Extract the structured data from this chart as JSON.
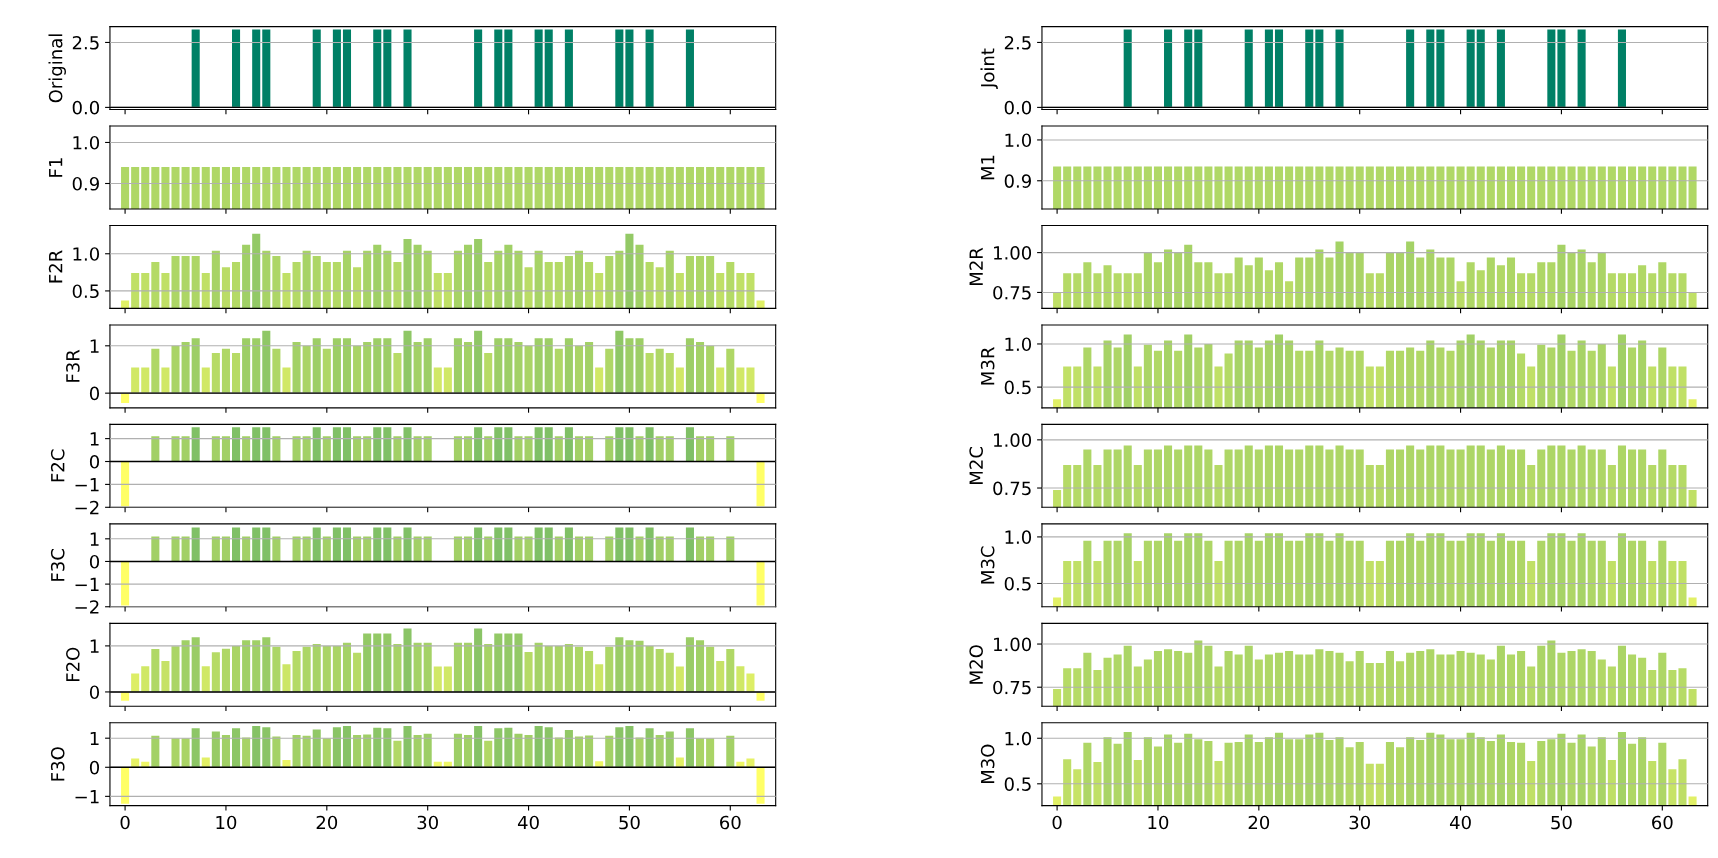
{
  "chart_data": [
    {
      "type": "bar",
      "ylabel": "Original",
      "tick_labels": "y",
      "grid": "y",
      "xlim": [
        -1.5,
        64.5
      ],
      "xticks": [
        0,
        10,
        20,
        30,
        40,
        50,
        60
      ],
      "ylim": [
        -0.08,
        3.11
      ],
      "yticks": [
        {
          "value": 0,
          "label": "0.0"
        },
        2.5
      ],
      "ref_lines": [
        {
          "axis": "y",
          "value": 0,
          "color": "#000000"
        }
      ],
      "x": [
        0,
        1,
        2,
        3,
        4,
        5,
        6,
        7,
        8,
        9,
        10,
        11,
        12,
        13,
        14,
        15,
        16,
        17,
        18,
        19,
        20,
        21,
        22,
        23,
        24,
        25,
        26,
        27,
        28,
        29,
        30,
        31,
        32,
        33,
        34,
        35,
        36,
        37,
        38,
        39,
        40,
        41,
        42,
        43,
        44,
        45,
        46,
        47,
        48,
        49,
        50,
        51,
        52,
        53,
        54,
        55,
        56,
        57,
        58,
        59,
        60,
        61,
        62,
        63
      ],
      "values": [
        0,
        0,
        0,
        0,
        0,
        0,
        0,
        3,
        0,
        0,
        0,
        3,
        0,
        3,
        3,
        0,
        0,
        0,
        0,
        3,
        0,
        3,
        3,
        0,
        0,
        3,
        3,
        0,
        3,
        0,
        0,
        0,
        0,
        0,
        0,
        3,
        0,
        3,
        3,
        0,
        0,
        3,
        3,
        0,
        3,
        0,
        0,
        0,
        0,
        3,
        3,
        0,
        3,
        0,
        0,
        0,
        3,
        0,
        0,
        0,
        0,
        0,
        0,
        0
      ]
    },
    {
      "type": "bar",
      "ylabel": "Joint",
      "tick_labels": "y",
      "grid": "y",
      "xlim": [
        -1.5,
        64.5
      ],
      "xticks": [
        0,
        10,
        20,
        30,
        40,
        50,
        60
      ],
      "ylim": [
        -0.08,
        3.11
      ],
      "yticks": [
        {
          "value": 0,
          "label": "0.0"
        },
        2.5
      ],
      "ref_lines": [
        {
          "axis": "y",
          "value": 0,
          "color": "#000000"
        }
      ],
      "x": [
        0,
        1,
        2,
        3,
        4,
        5,
        6,
        7,
        8,
        9,
        10,
        11,
        12,
        13,
        14,
        15,
        16,
        17,
        18,
        19,
        20,
        21,
        22,
        23,
        24,
        25,
        26,
        27,
        28,
        29,
        30,
        31,
        32,
        33,
        34,
        35,
        36,
        37,
        38,
        39,
        40,
        41,
        42,
        43,
        44,
        45,
        46,
        47,
        48,
        49,
        50,
        51,
        52,
        53,
        54,
        55,
        56,
        57,
        58,
        59,
        60,
        61,
        62,
        63
      ],
      "values": [
        0,
        0,
        0,
        0,
        0,
        0,
        0,
        3,
        0,
        0,
        0,
        3,
        0,
        3,
        3,
        0,
        0,
        0,
        0,
        3,
        0,
        3,
        3,
        0,
        0,
        3,
        3,
        0,
        3,
        0,
        0,
        0,
        0,
        0,
        0,
        3,
        0,
        3,
        3,
        0,
        0,
        3,
        3,
        0,
        3,
        0,
        0,
        0,
        0,
        3,
        3,
        0,
        3,
        0,
        0,
        0,
        3,
        0,
        0,
        0,
        0,
        0,
        0,
        0
      ]
    },
    {
      "type": "bar",
      "ylabel": "F1",
      "tick_labels": "y",
      "grid": "y",
      "xlim": [
        -1.5,
        64.5
      ],
      "xticks": [
        0,
        10,
        20,
        30,
        40,
        50,
        60
      ],
      "ylim": [
        0.838,
        1.04
      ],
      "yticks": [
        0.9,
        {
          "value": 1,
          "label": "1.0"
        }
      ],
      "x": [
        0,
        1,
        2,
        3,
        4,
        5,
        6,
        7,
        8,
        9,
        10,
        11,
        12,
        13,
        14,
        15,
        16,
        17,
        18,
        19,
        20,
        21,
        22,
        23,
        24,
        25,
        26,
        27,
        28,
        29,
        30,
        31,
        32,
        33,
        34,
        35,
        36,
        37,
        38,
        39,
        40,
        41,
        42,
        43,
        44,
        45,
        46,
        47,
        48,
        49,
        50,
        51,
        52,
        53,
        54,
        55,
        56,
        57,
        58,
        59,
        60,
        61,
        62,
        63
      ],
      "values": [
        0.94,
        0.94,
        0.94,
        0.94,
        0.94,
        0.94,
        0.94,
        0.94,
        0.94,
        0.94,
        0.94,
        0.94,
        0.94,
        0.94,
        0.94,
        0.94,
        0.94,
        0.94,
        0.94,
        0.94,
        0.94,
        0.94,
        0.94,
        0.94,
        0.94,
        0.94,
        0.94,
        0.94,
        0.94,
        0.94,
        0.94,
        0.94,
        0.94,
        0.94,
        0.94,
        0.94,
        0.94,
        0.94,
        0.94,
        0.94,
        0.94,
        0.94,
        0.94,
        0.94,
        0.94,
        0.94,
        0.94,
        0.94,
        0.94,
        0.94,
        0.94,
        0.94,
        0.94,
        0.94,
        0.94,
        0.94,
        0.94,
        0.94,
        0.94,
        0.94,
        0.94,
        0.94,
        0.94,
        0.94
      ]
    },
    {
      "type": "bar",
      "ylabel": "M1",
      "tick_labels": "y",
      "grid": "y",
      "xlim": [
        -1.5,
        64.5
      ],
      "xticks": [
        0,
        10,
        20,
        30,
        40,
        50,
        60
      ],
      "ylim": [
        0.831,
        1.034
      ],
      "yticks": [
        0.9,
        {
          "value": 1,
          "label": "1.0"
        }
      ],
      "x": [
        0,
        1,
        2,
        3,
        4,
        5,
        6,
        7,
        8,
        9,
        10,
        11,
        12,
        13,
        14,
        15,
        16,
        17,
        18,
        19,
        20,
        21,
        22,
        23,
        24,
        25,
        26,
        27,
        28,
        29,
        30,
        31,
        32,
        33,
        34,
        35,
        36,
        37,
        38,
        39,
        40,
        41,
        42,
        43,
        44,
        45,
        46,
        47,
        48,
        49,
        50,
        51,
        52,
        53,
        54,
        55,
        56,
        57,
        58,
        59,
        60,
        61,
        62,
        63
      ],
      "values": [
        0.935,
        0.935,
        0.935,
        0.935,
        0.935,
        0.935,
        0.935,
        0.935,
        0.935,
        0.935,
        0.935,
        0.935,
        0.935,
        0.935,
        0.935,
        0.935,
        0.935,
        0.935,
        0.935,
        0.935,
        0.935,
        0.935,
        0.935,
        0.935,
        0.935,
        0.935,
        0.935,
        0.935,
        0.935,
        0.935,
        0.935,
        0.935,
        0.935,
        0.935,
        0.935,
        0.935,
        0.935,
        0.935,
        0.935,
        0.935,
        0.935,
        0.935,
        0.935,
        0.935,
        0.935,
        0.935,
        0.935,
        0.935,
        0.935,
        0.935,
        0.935,
        0.935,
        0.935,
        0.935,
        0.935,
        0.935,
        0.935,
        0.935,
        0.935,
        0.935,
        0.935,
        0.935,
        0.935,
        0.935
      ]
    },
    {
      "type": "bar",
      "ylabel": "F2R",
      "tick_labels": "y",
      "grid": "y",
      "xlim": [
        -1.5,
        64.5
      ],
      "xticks": [
        0,
        10,
        20,
        30,
        40,
        50,
        60
      ],
      "ylim": [
        0.265,
        1.38
      ],
      "yticks": [
        0.5,
        {
          "value": 1,
          "label": "1.0"
        }
      ],
      "x": [
        0,
        1,
        2,
        3,
        4,
        5,
        6,
        7,
        8,
        9,
        10,
        11,
        12,
        13,
        14,
        15,
        16,
        17,
        18,
        19,
        20,
        21,
        22,
        23,
        24,
        25,
        26,
        27,
        28,
        29,
        30,
        31,
        32,
        33,
        34,
        35,
        36,
        37,
        38,
        39,
        40,
        41,
        42,
        43,
        44,
        45,
        46,
        47,
        48,
        49,
        50,
        51,
        52,
        53,
        54,
        55,
        56,
        57,
        58,
        59,
        60,
        61,
        62,
        63
      ],
      "values": [
        0.37,
        0.74,
        0.74,
        0.89,
        0.74,
        0.97,
        0.97,
        0.97,
        0.74,
        1.04,
        0.82,
        0.89,
        1.12,
        1.27,
        1.04,
        0.97,
        0.74,
        0.89,
        1.04,
        0.97,
        0.89,
        0.89,
        1.04,
        0.82,
        1.04,
        1.12,
        1.04,
        0.89,
        1.2,
        1.12,
        1.04,
        0.74,
        0.74,
        1.04,
        1.12,
        1.2,
        0.89,
        1.04,
        1.12,
        1.04,
        0.82,
        1.04,
        0.89,
        0.89,
        0.97,
        1.04,
        0.89,
        0.74,
        0.97,
        1.04,
        1.27,
        1.12,
        0.89,
        0.82,
        1.04,
        0.74,
        0.97,
        0.97,
        0.97,
        0.74,
        0.89,
        0.74,
        0.74,
        0.37
      ]
    },
    {
      "type": "bar",
      "ylabel": "M2R",
      "tick_labels": "y",
      "grid": "y",
      "xlim": [
        -1.5,
        64.5
      ],
      "xticks": [
        0,
        10,
        20,
        30,
        40,
        50,
        60
      ],
      "ylim": [
        0.65,
        1.17
      ],
      "yticks": [
        0.75,
        {
          "value": 1,
          "label": "1.00"
        }
      ],
      "x": [
        0,
        1,
        2,
        3,
        4,
        5,
        6,
        7,
        8,
        9,
        10,
        11,
        12,
        13,
        14,
        15,
        16,
        17,
        18,
        19,
        20,
        21,
        22,
        23,
        24,
        25,
        26,
        27,
        28,
        29,
        30,
        31,
        32,
        33,
        34,
        35,
        36,
        37,
        38,
        39,
        40,
        41,
        42,
        43,
        44,
        45,
        46,
        47,
        48,
        49,
        50,
        51,
        52,
        53,
        54,
        55,
        56,
        57,
        58,
        59,
        60,
        61,
        62,
        63
      ],
      "values": [
        0.75,
        0.87,
        0.87,
        0.94,
        0.87,
        0.92,
        0.87,
        0.87,
        0.87,
        1.0,
        0.94,
        1.02,
        1.0,
        1.05,
        0.94,
        0.94,
        0.87,
        0.87,
        0.97,
        0.92,
        0.97,
        0.89,
        0.94,
        0.82,
        0.97,
        0.97,
        1.02,
        0.97,
        1.07,
        1.0,
        1.0,
        0.87,
        0.87,
        1.0,
        1.0,
        1.07,
        0.97,
        1.02,
        0.97,
        0.97,
        0.82,
        0.94,
        0.89,
        0.97,
        0.92,
        0.97,
        0.87,
        0.87,
        0.94,
        0.94,
        1.05,
        1.0,
        1.02,
        0.94,
        1.0,
        0.87,
        0.87,
        0.87,
        0.92,
        0.87,
        0.94,
        0.87,
        0.87,
        0.75
      ]
    },
    {
      "type": "bar",
      "ylabel": "F3R",
      "tick_labels": "y",
      "grid": "y",
      "xlim": [
        -1.5,
        64.5
      ],
      "xticks": [
        0,
        10,
        20,
        30,
        40,
        50,
        60
      ],
      "ylim": [
        -0.31,
        1.44
      ],
      "yticks": [
        0,
        1
      ],
      "ref_lines": [
        {
          "axis": "y",
          "value": 0,
          "color": "#000000"
        }
      ],
      "x": [
        0,
        1,
        2,
        3,
        4,
        5,
        6,
        7,
        8,
        9,
        10,
        11,
        12,
        13,
        14,
        15,
        16,
        17,
        18,
        19,
        20,
        21,
        22,
        23,
        24,
        25,
        26,
        27,
        28,
        29,
        30,
        31,
        32,
        33,
        34,
        35,
        36,
        37,
        38,
        39,
        40,
        41,
        42,
        43,
        44,
        45,
        46,
        47,
        48,
        49,
        50,
        51,
        52,
        53,
        54,
        55,
        56,
        57,
        58,
        59,
        60,
        61,
        62,
        63
      ],
      "values": [
        -0.21,
        0.54,
        0.54,
        0.94,
        0.54,
        1.0,
        1.08,
        1.16,
        0.54,
        0.85,
        0.94,
        0.85,
        1.16,
        1.16,
        1.32,
        0.94,
        0.54,
        1.08,
        1.0,
        1.16,
        0.94,
        1.16,
        1.16,
        1.0,
        1.08,
        1.16,
        1.16,
        0.85,
        1.32,
        1.08,
        1.16,
        0.54,
        0.54,
        1.16,
        1.08,
        1.32,
        0.85,
        1.16,
        1.16,
        1.08,
        1.0,
        1.16,
        1.16,
        0.94,
        1.16,
        1.0,
        1.08,
        0.54,
        0.94,
        1.32,
        1.16,
        1.16,
        0.85,
        0.94,
        0.85,
        0.54,
        1.16,
        1.08,
        1.0,
        0.54,
        0.94,
        0.54,
        0.54,
        -0.21
      ]
    },
    {
      "type": "bar",
      "ylabel": "M3R",
      "tick_labels": "y",
      "grid": "y",
      "xlim": [
        -1.5,
        64.5
      ],
      "xticks": [
        0,
        10,
        20,
        30,
        40,
        50,
        60
      ],
      "ylim": [
        0.26,
        1.22
      ],
      "yticks": [
        0.5,
        {
          "value": 1,
          "label": "1.0"
        }
      ],
      "x": [
        0,
        1,
        2,
        3,
        4,
        5,
        6,
        7,
        8,
        9,
        10,
        11,
        12,
        13,
        14,
        15,
        16,
        17,
        18,
        19,
        20,
        21,
        22,
        23,
        24,
        25,
        26,
        27,
        28,
        29,
        30,
        31,
        32,
        33,
        34,
        35,
        36,
        37,
        38,
        39,
        40,
        41,
        42,
        43,
        44,
        45,
        46,
        47,
        48,
        49,
        50,
        51,
        52,
        53,
        54,
        55,
        56,
        57,
        58,
        59,
        60,
        61,
        62,
        63
      ],
      "values": [
        0.36,
        0.74,
        0.74,
        0.96,
        0.74,
        1.04,
        0.96,
        1.11,
        0.74,
        0.99,
        0.92,
        1.04,
        0.92,
        1.11,
        0.96,
        1.0,
        0.74,
        0.89,
        1.04,
        1.04,
        0.96,
        1.04,
        1.11,
        1.04,
        0.92,
        0.92,
        1.04,
        0.92,
        0.96,
        0.92,
        0.92,
        0.74,
        0.74,
        0.92,
        0.92,
        0.96,
        0.92,
        1.04,
        0.96,
        0.92,
        1.04,
        1.11,
        1.04,
        0.96,
        1.04,
        1.04,
        0.89,
        0.74,
        0.99,
        0.96,
        1.11,
        0.92,
        1.04,
        0.92,
        1.0,
        0.74,
        1.11,
        0.96,
        1.04,
        0.74,
        0.96,
        0.74,
        0.74,
        0.36
      ]
    },
    {
      "type": "bar",
      "ylabel": "F2C",
      "tick_labels": "y",
      "grid": "y",
      "xlim": [
        -1.5,
        64.5
      ],
      "xticks": [
        0,
        10,
        20,
        30,
        40,
        50,
        60
      ],
      "ylim": [
        -2.0,
        1.62
      ],
      "yticks": [
        {
          "value": -2,
          "label": "−2"
        },
        {
          "value": -1,
          "label": "−1"
        },
        0,
        1
      ],
      "ref_lines": [
        {
          "axis": "y",
          "value": 0,
          "color": "#000000"
        }
      ],
      "x": [
        0,
        1,
        2,
        3,
        4,
        5,
        6,
        7,
        8,
        9,
        10,
        11,
        12,
        13,
        14,
        15,
        16,
        17,
        18,
        19,
        20,
        21,
        22,
        23,
        24,
        25,
        26,
        27,
        28,
        29,
        30,
        31,
        32,
        33,
        34,
        35,
        36,
        37,
        38,
        39,
        40,
        41,
        42,
        43,
        44,
        45,
        46,
        47,
        48,
        49,
        50,
        51,
        52,
        53,
        54,
        55,
        56,
        57,
        58,
        59,
        60,
        61,
        62,
        63
      ],
      "values": [
        -1.95,
        0,
        0,
        1.1,
        0,
        1.1,
        1.1,
        1.5,
        0,
        1.1,
        1.1,
        1.5,
        1.1,
        1.5,
        1.5,
        1.1,
        0,
        1.1,
        1.1,
        1.5,
        1.1,
        1.5,
        1.5,
        1.1,
        1.1,
        1.5,
        1.5,
        1.1,
        1.5,
        1.1,
        1.1,
        0,
        0,
        1.1,
        1.1,
        1.5,
        1.1,
        1.5,
        1.5,
        1.1,
        1.1,
        1.5,
        1.5,
        1.1,
        1.5,
        1.1,
        1.1,
        0,
        1.1,
        1.5,
        1.5,
        1.1,
        1.5,
        1.1,
        1.1,
        0,
        1.5,
        1.1,
        1.1,
        0,
        1.1,
        0,
        0,
        -1.95
      ]
    },
    {
      "type": "bar",
      "ylabel": "M2C",
      "tick_labels": "y",
      "grid": "y",
      "xlim": [
        -1.5,
        64.5
      ],
      "xticks": [
        0,
        10,
        20,
        30,
        40,
        50,
        60
      ],
      "ylim": [
        0.65,
        1.08
      ],
      "yticks": [
        0.75,
        {
          "value": 1,
          "label": "1.00"
        }
      ],
      "x": [
        0,
        1,
        2,
        3,
        4,
        5,
        6,
        7,
        8,
        9,
        10,
        11,
        12,
        13,
        14,
        15,
        16,
        17,
        18,
        19,
        20,
        21,
        22,
        23,
        24,
        25,
        26,
        27,
        28,
        29,
        30,
        31,
        32,
        33,
        34,
        35,
        36,
        37,
        38,
        39,
        40,
        41,
        42,
        43,
        44,
        45,
        46,
        47,
        48,
        49,
        50,
        51,
        52,
        53,
        54,
        55,
        56,
        57,
        58,
        59,
        60,
        61,
        62,
        63
      ],
      "values": [
        0.74,
        0.87,
        0.87,
        0.95,
        0.87,
        0.95,
        0.95,
        0.97,
        0.87,
        0.95,
        0.95,
        0.97,
        0.95,
        0.97,
        0.97,
        0.95,
        0.87,
        0.95,
        0.95,
        0.97,
        0.95,
        0.97,
        0.97,
        0.95,
        0.95,
        0.97,
        0.97,
        0.95,
        0.97,
        0.95,
        0.95,
        0.87,
        0.87,
        0.95,
        0.95,
        0.97,
        0.95,
        0.97,
        0.97,
        0.95,
        0.95,
        0.97,
        0.97,
        0.95,
        0.97,
        0.95,
        0.95,
        0.87,
        0.95,
        0.97,
        0.97,
        0.95,
        0.97,
        0.95,
        0.95,
        0.87,
        0.97,
        0.95,
        0.95,
        0.87,
        0.95,
        0.87,
        0.87,
        0.74
      ]
    },
    {
      "type": "bar",
      "ylabel": "F3C",
      "tick_labels": "y",
      "grid": "y",
      "xlim": [
        -1.5,
        64.5
      ],
      "xticks": [
        0,
        10,
        20,
        30,
        40,
        50,
        60
      ],
      "ylim": [
        -2.0,
        1.66
      ],
      "yticks": [
        {
          "value": -2,
          "label": "−2"
        },
        {
          "value": -1,
          "label": "−1"
        },
        0,
        1
      ],
      "ref_lines": [
        {
          "axis": "y",
          "value": 0,
          "color": "#000000"
        }
      ],
      "x": [
        0,
        1,
        2,
        3,
        4,
        5,
        6,
        7,
        8,
        9,
        10,
        11,
        12,
        13,
        14,
        15,
        16,
        17,
        18,
        19,
        20,
        21,
        22,
        23,
        24,
        25,
        26,
        27,
        28,
        29,
        30,
        31,
        32,
        33,
        34,
        35,
        36,
        37,
        38,
        39,
        40,
        41,
        42,
        43,
        44,
        45,
        46,
        47,
        48,
        49,
        50,
        51,
        52,
        53,
        54,
        55,
        56,
        57,
        58,
        59,
        60,
        61,
        62,
        63
      ],
      "values": [
        -1.95,
        0,
        0,
        1.1,
        0,
        1.1,
        1.1,
        1.5,
        0,
        1.1,
        1.1,
        1.5,
        1.1,
        1.5,
        1.5,
        1.1,
        0,
        1.1,
        1.1,
        1.5,
        1.1,
        1.5,
        1.5,
        1.1,
        1.1,
        1.5,
        1.5,
        1.1,
        1.5,
        1.1,
        1.1,
        0,
        0,
        1.1,
        1.1,
        1.5,
        1.1,
        1.5,
        1.5,
        1.1,
        1.1,
        1.5,
        1.5,
        1.1,
        1.5,
        1.1,
        1.1,
        0,
        1.1,
        1.5,
        1.5,
        1.1,
        1.5,
        1.1,
        1.1,
        0,
        1.5,
        1.1,
        1.1,
        0,
        1.1,
        0,
        0,
        -1.95
      ]
    },
    {
      "type": "bar",
      "ylabel": "M3C",
      "tick_labels": "y",
      "grid": "y",
      "xlim": [
        -1.5,
        64.5
      ],
      "xticks": [
        0,
        10,
        20,
        30,
        40,
        50,
        60
      ],
      "ylim": [
        0.25,
        1.14
      ],
      "yticks": [
        0.5,
        {
          "value": 1,
          "label": "1.0"
        }
      ],
      "x": [
        0,
        1,
        2,
        3,
        4,
        5,
        6,
        7,
        8,
        9,
        10,
        11,
        12,
        13,
        14,
        15,
        16,
        17,
        18,
        19,
        20,
        21,
        22,
        23,
        24,
        25,
        26,
        27,
        28,
        29,
        30,
        31,
        32,
        33,
        34,
        35,
        36,
        37,
        38,
        39,
        40,
        41,
        42,
        43,
        44,
        45,
        46,
        47,
        48,
        49,
        50,
        51,
        52,
        53,
        54,
        55,
        56,
        57,
        58,
        59,
        60,
        61,
        62,
        63
      ],
      "values": [
        0.35,
        0.74,
        0.74,
        0.96,
        0.74,
        0.96,
        0.96,
        1.04,
        0.74,
        0.96,
        0.96,
        1.04,
        0.96,
        1.04,
        1.04,
        0.96,
        0.74,
        0.96,
        0.96,
        1.04,
        0.96,
        1.04,
        1.04,
        0.96,
        0.96,
        1.04,
        1.04,
        0.96,
        1.04,
        0.96,
        0.96,
        0.74,
        0.74,
        0.96,
        0.96,
        1.04,
        0.96,
        1.04,
        1.04,
        0.96,
        0.96,
        1.04,
        1.04,
        0.96,
        1.04,
        0.96,
        0.96,
        0.74,
        0.96,
        1.04,
        1.04,
        0.96,
        1.04,
        0.96,
        0.96,
        0.74,
        1.04,
        0.96,
        0.96,
        0.74,
        0.96,
        0.74,
        0.74,
        0.35
      ]
    },
    {
      "type": "bar",
      "ylabel": "F2O",
      "tick_labels": "y",
      "grid": "y",
      "xlim": [
        -1.5,
        64.5
      ],
      "xticks": [
        0,
        10,
        20,
        30,
        40,
        50,
        60
      ],
      "ylim": [
        -0.31,
        1.49
      ],
      "yticks": [
        0,
        1
      ],
      "ref_lines": [
        {
          "axis": "y",
          "value": 0,
          "color": "#000000"
        }
      ],
      "x": [
        0,
        1,
        2,
        3,
        4,
        5,
        6,
        7,
        8,
        9,
        10,
        11,
        12,
        13,
        14,
        15,
        16,
        17,
        18,
        19,
        20,
        21,
        22,
        23,
        24,
        25,
        26,
        27,
        28,
        29,
        30,
        31,
        32,
        33,
        34,
        35,
        36,
        37,
        38,
        39,
        40,
        41,
        42,
        43,
        44,
        45,
        46,
        47,
        48,
        49,
        50,
        51,
        52,
        53,
        54,
        55,
        56,
        57,
        58,
        59,
        60,
        61,
        62,
        63
      ],
      "values": [
        -0.19,
        0.4,
        0.56,
        0.93,
        0.67,
        0.99,
        1.12,
        1.19,
        0.56,
        0.86,
        0.94,
        1.0,
        1.12,
        1.12,
        1.19,
        0.98,
        0.6,
        0.89,
        0.98,
        1.04,
        1.0,
        1.0,
        1.07,
        0.85,
        1.27,
        1.27,
        1.27,
        1.04,
        1.38,
        1.07,
        1.07,
        0.55,
        0.55,
        1.07,
        1.07,
        1.38,
        1.04,
        1.27,
        1.27,
        1.27,
        0.87,
        1.07,
        1.0,
        1.0,
        1.04,
        0.98,
        0.89,
        0.6,
        0.98,
        1.19,
        1.12,
        1.11,
        1.0,
        0.93,
        0.85,
        0.55,
        1.19,
        1.12,
        0.98,
        0.67,
        0.93,
        0.56,
        0.4,
        -0.19
      ]
    },
    {
      "type": "bar",
      "ylabel": "M2O",
      "tick_labels": "y",
      "grid": "y",
      "xlim": [
        -1.5,
        64.5
      ],
      "xticks": [
        0,
        10,
        20,
        30,
        40,
        50,
        60
      ],
      "ylim": [
        0.64,
        1.12
      ],
      "yticks": [
        0.75,
        {
          "value": 1,
          "label": "1.00"
        }
      ],
      "x": [
        0,
        1,
        2,
        3,
        4,
        5,
        6,
        7,
        8,
        9,
        10,
        11,
        12,
        13,
        14,
        15,
        16,
        17,
        18,
        19,
        20,
        21,
        22,
        23,
        24,
        25,
        26,
        27,
        28,
        29,
        30,
        31,
        32,
        33,
        34,
        35,
        36,
        37,
        38,
        39,
        40,
        41,
        42,
        43,
        44,
        45,
        46,
        47,
        48,
        49,
        50,
        51,
        52,
        53,
        54,
        55,
        56,
        57,
        58,
        59,
        60,
        61,
        62,
        63
      ],
      "values": [
        0.74,
        0.86,
        0.86,
        0.95,
        0.85,
        0.92,
        0.94,
        0.99,
        0.87,
        0.91,
        0.96,
        0.97,
        0.96,
        0.95,
        1.02,
        0.99,
        0.87,
        0.96,
        0.94,
        0.99,
        0.91,
        0.94,
        0.95,
        0.96,
        0.94,
        0.94,
        0.97,
        0.96,
        0.95,
        0.9,
        0.96,
        0.89,
        0.89,
        0.96,
        0.9,
        0.95,
        0.96,
        0.97,
        0.94,
        0.94,
        0.96,
        0.95,
        0.94,
        0.91,
        0.99,
        0.94,
        0.96,
        0.87,
        0.99,
        1.02,
        0.95,
        0.96,
        0.97,
        0.96,
        0.91,
        0.87,
        0.99,
        0.94,
        0.92,
        0.85,
        0.95,
        0.85,
        0.86,
        0.74
      ]
    },
    {
      "type": "bar",
      "ylabel": "F3O",
      "grid": "y",
      "xlim": [
        -1.5,
        64.5
      ],
      "xticks": [
        0,
        10,
        20,
        30,
        40,
        50,
        60
      ],
      "ylim": [
        -1.32,
        1.53
      ],
      "yticks": [
        {
          "value": -1,
          "label": "−1"
        },
        0,
        1
      ],
      "ref_lines": [
        {
          "axis": "y",
          "value": 0,
          "color": "#000000"
        }
      ],
      "x": [
        0,
        1,
        2,
        3,
        4,
        5,
        6,
        7,
        8,
        9,
        10,
        11,
        12,
        13,
        14,
        15,
        16,
        17,
        18,
        19,
        20,
        21,
        22,
        23,
        24,
        25,
        26,
        27,
        28,
        29,
        30,
        31,
        32,
        33,
        34,
        35,
        36,
        37,
        38,
        39,
        40,
        41,
        42,
        43,
        44,
        45,
        46,
        47,
        48,
        49,
        50,
        51,
        52,
        53,
        54,
        55,
        56,
        57,
        58,
        59,
        60,
        61,
        62,
        63
      ],
      "values": [
        -1.25,
        0.3,
        0.19,
        1.08,
        0,
        1.0,
        1.0,
        1.34,
        0.34,
        1.23,
        1.11,
        1.34,
        1.02,
        1.42,
        1.38,
        1.06,
        0.25,
        1.11,
        1.08,
        1.3,
        1.0,
        1.38,
        1.42,
        1.11,
        1.13,
        1.36,
        1.34,
        0.91,
        1.42,
        1.11,
        1.15,
        0.19,
        0.19,
        1.15,
        1.11,
        1.42,
        0.91,
        1.34,
        1.36,
        1.15,
        1.11,
        1.42,
        1.38,
        1.02,
        1.28,
        1.06,
        1.09,
        0.21,
        1.08,
        1.38,
        1.42,
        1.02,
        1.34,
        1.11,
        1.23,
        0.34,
        1.34,
        1.0,
        1.0,
        0,
        1.08,
        0.19,
        0.3,
        -1.25
      ]
    },
    {
      "type": "bar",
      "ylabel": "M3O",
      "grid": "y",
      "xlim": [
        -1.5,
        64.5
      ],
      "xticks": [
        0,
        10,
        20,
        30,
        40,
        50,
        60
      ],
      "ylim": [
        0.26,
        1.17
      ],
      "yticks": [
        0.5,
        {
          "value": 1,
          "label": "1.0"
        }
      ],
      "x": [
        0,
        1,
        2,
        3,
        4,
        5,
        6,
        7,
        8,
        9,
        10,
        11,
        12,
        13,
        14,
        15,
        16,
        17,
        18,
        19,
        20,
        21,
        22,
        23,
        24,
        25,
        26,
        27,
        28,
        29,
        30,
        31,
        32,
        33,
        34,
        35,
        36,
        37,
        38,
        39,
        40,
        41,
        42,
        43,
        44,
        45,
        46,
        47,
        48,
        49,
        50,
        51,
        52,
        53,
        54,
        55,
        56,
        57,
        58,
        59,
        60,
        61,
        62,
        63
      ],
      "values": [
        0.36,
        0.77,
        0.66,
        0.95,
        0.74,
        1.01,
        0.94,
        1.07,
        0.76,
        1.01,
        0.91,
        1.04,
        0.95,
        1.05,
        0.99,
        0.97,
        0.75,
        0.95,
        0.96,
        1.04,
        0.96,
        1.01,
        1.06,
        0.99,
        0.99,
        1.04,
        1.06,
        0.98,
        1.01,
        0.9,
        0.96,
        0.72,
        0.72,
        0.96,
        0.9,
        1.01,
        0.98,
        1.06,
        1.04,
        0.99,
        0.99,
        1.06,
        1.01,
        0.97,
        1.04,
        0.96,
        0.95,
        0.75,
        0.97,
        0.99,
        1.05,
        0.95,
        1.04,
        0.91,
        1.01,
        0.76,
        1.07,
        0.94,
        1.01,
        0.75,
        0.95,
        0.66,
        0.77,
        0.36
      ]
    }
  ]
}
